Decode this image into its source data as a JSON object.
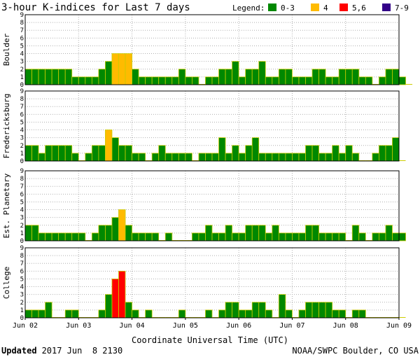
{
  "chart_data": {
    "type": "bar",
    "title": "3-hour K-indices for Last 7 days",
    "legend": {
      "label": "Legend:",
      "placement": "top-right",
      "items": [
        {
          "label": "0-3",
          "color": "#008800"
        },
        {
          "label": "4",
          "color": "#ffbb00"
        },
        {
          "label": "5,6",
          "color": "#ff0000"
        },
        {
          "label": "7-9",
          "color": "#330088"
        }
      ]
    },
    "xlabel": "Coordinate Universal Time (UTC)",
    "x_tick_labels": [
      "Jun 02",
      "Jun 03",
      "Jun 04",
      "Jun 05",
      "Jun 06",
      "Jun 07",
      "Jun 08",
      "Jun 09"
    ],
    "y_ticks": [
      0,
      1,
      2,
      3,
      4,
      5,
      6,
      7,
      8,
      9
    ],
    "ylim": [
      0,
      9
    ],
    "grid": true,
    "bars_per_day": 8,
    "series": [
      {
        "name": "Boulder",
        "values": [
          2,
          2,
          2,
          2,
          2,
          2,
          2,
          1,
          1,
          1,
          1,
          2,
          3,
          4,
          4,
          4,
          2,
          1,
          1,
          1,
          1,
          1,
          1,
          2,
          1,
          1,
          0,
          1,
          1,
          2,
          2,
          3,
          1,
          2,
          2,
          3,
          1,
          1,
          2,
          2,
          1,
          1,
          1,
          2,
          2,
          1,
          1,
          2,
          2,
          2,
          1,
          1,
          0,
          1,
          2,
          2,
          1,
          0
        ]
      },
      {
        "name": "Fredericksburg",
        "values": [
          2,
          2,
          1,
          2,
          2,
          2,
          2,
          1,
          0,
          1,
          2,
          2,
          4,
          3,
          2,
          2,
          1,
          1,
          0,
          1,
          2,
          1,
          1,
          1,
          1,
          0,
          1,
          1,
          1,
          3,
          1,
          2,
          1,
          2,
          3,
          1,
          1,
          1,
          1,
          1,
          1,
          1,
          2,
          2,
          1,
          1,
          2,
          1,
          2,
          1,
          0,
          0,
          1,
          2,
          2,
          3,
          0
        ]
      },
      {
        "name": "Est. Planetary",
        "values": [
          2,
          2,
          1,
          1,
          1,
          1,
          1,
          1,
          1,
          0,
          1,
          2,
          2,
          3,
          4,
          2,
          1,
          1,
          1,
          1,
          0,
          1,
          0,
          0,
          0,
          1,
          1,
          2,
          1,
          1,
          2,
          1,
          1,
          2,
          2,
          2,
          1,
          2,
          1,
          1,
          1,
          1,
          2,
          2,
          1,
          1,
          1,
          1,
          0,
          2,
          1,
          0,
          1,
          1,
          2,
          1,
          1
        ]
      },
      {
        "name": "College",
        "values": [
          1,
          1,
          1,
          2,
          0,
          0,
          1,
          1,
          0,
          0,
          0,
          1,
          3,
          5,
          6,
          2,
          1,
          0,
          1,
          0,
          0,
          0,
          0,
          1,
          0,
          0,
          0,
          1,
          0,
          1,
          2,
          2,
          1,
          1,
          2,
          2,
          1,
          0,
          3,
          1,
          0,
          1,
          2,
          2,
          2,
          2,
          1,
          1,
          0,
          1,
          1,
          0,
          0,
          0,
          0,
          0,
          0
        ]
      }
    ]
  },
  "footer": {
    "updated_label": "Updated",
    "updated_value": "2017 Jun  8 2130",
    "source": "NOAA/SWPC Boulder, CO USA"
  }
}
